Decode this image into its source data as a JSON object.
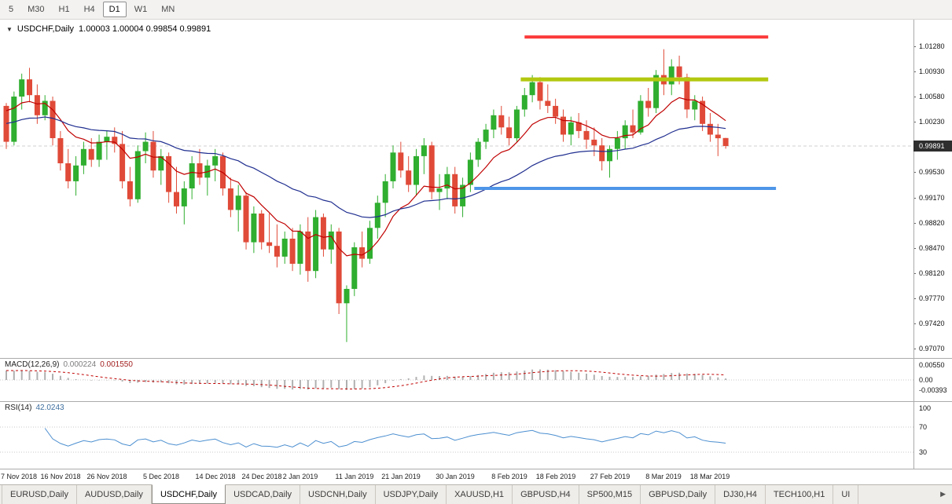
{
  "toolbar": {
    "timeframes": [
      {
        "label": "5",
        "active": false
      },
      {
        "label": "M30",
        "active": false
      },
      {
        "label": "H1",
        "active": false
      },
      {
        "label": "H4",
        "active": false
      },
      {
        "label": "D1",
        "active": true
      },
      {
        "label": "W1",
        "active": false
      },
      {
        "label": "MN",
        "active": false
      }
    ]
  },
  "chart": {
    "symbol_title": "USDCHF,Daily",
    "ohlc_text": "1.00003 1.00004 0.99854 0.99891",
    "current_price": "0.99891",
    "collapse_icon": "▼"
  },
  "macd_panel": {
    "label": "MACD(12,26,9)",
    "main_value": "0.000224",
    "signal_value": "0.001550",
    "axis_labels": [
      "0.00550",
      "0.00",
      "-0.00393"
    ]
  },
  "rsi_panel": {
    "label": "RSI(14)",
    "value": "42.0243",
    "axis_labels": [
      "100",
      "70",
      "30"
    ]
  },
  "tabs": {
    "items": [
      "EURUSD,Daily",
      "AUDUSD,Daily",
      "USDCHF,Daily",
      "USDCAD,Daily",
      "USDCNH,Daily",
      "USDJPY,Daily",
      "XAUUSD,H1",
      "GBPUSD,H4",
      "SP500,M15",
      "GBPUSD,Daily",
      "DJ30,H4",
      "TECH100,H1",
      "UI"
    ],
    "active_index": 2,
    "scroll_right_icon": "▶"
  },
  "chart_data": {
    "type": "candlestick",
    "title": "USDCHF,Daily",
    "price_min": 0.96938,
    "price_max": 1.01652,
    "price_axis_labels": [
      "1.01280",
      "1.00930",
      "1.00580",
      "1.00230",
      "0.99530",
      "0.99170",
      "0.98820",
      "0.98470",
      "0.98120",
      "0.97770",
      "0.97420",
      "0.97070"
    ],
    "date_labels": [
      {
        "text": "7 Nov 2018",
        "index": 0
      },
      {
        "text": "16 Nov 2018",
        "index": 7
      },
      {
        "text": "26 Nov 2018",
        "index": 13
      },
      {
        "text": "5 Dec 2018",
        "index": 20
      },
      {
        "text": "14 Dec 2018",
        "index": 27
      },
      {
        "text": "24 Dec 2018",
        "index": 33
      },
      {
        "text": "2 Jan 2019",
        "index": 38
      },
      {
        "text": "11 Jan 2019",
        "index": 45
      },
      {
        "text": "21 Jan 2019",
        "index": 51
      },
      {
        "text": "30 Jan 2019",
        "index": 58
      },
      {
        "text": "8 Feb 2019",
        "index": 65
      },
      {
        "text": "18 Feb 2019",
        "index": 71
      },
      {
        "text": "27 Feb 2019",
        "index": 78
      },
      {
        "text": "8 Mar 2019",
        "index": 85
      },
      {
        "text": "18 Mar 2019",
        "index": 91
      }
    ],
    "colors": {
      "up": "#2fae2f",
      "down": "#e04a38",
      "ma_fast": "#c00000",
      "ma_slow": "#1f2e8f",
      "macd_hist": "#b0b0b0",
      "macd_signal": "#c00000",
      "rsi_line": "#4c8fd0",
      "hline_red": "#fb3a3a",
      "hline_yellow": "#b2c80f",
      "hline_blue": "#4d96e8",
      "current_price_line": "#cfcfcf"
    },
    "candles": [
      [
        1.0045,
        1.0049,
        0.9985,
        0.9995
      ],
      [
        0.9995,
        1.0065,
        0.999,
        1.0058
      ],
      [
        1.0058,
        1.009,
        1.004,
        1.0082
      ],
      [
        1.0082,
        1.0098,
        1.005,
        1.006
      ],
      [
        1.006,
        1.0075,
        1.002,
        1.0032
      ],
      [
        1.0032,
        1.006,
        1.0025,
        1.0052
      ],
      [
        1.0052,
        1.0058,
        0.999,
        1.0
      ],
      [
        1.0,
        1.001,
        0.9955,
        0.9965
      ],
      [
        0.9965,
        0.9985,
        0.993,
        0.994
      ],
      [
        0.994,
        0.9975,
        0.992,
        0.9962
      ],
      [
        0.9962,
        0.9995,
        0.995,
        0.9985
      ],
      [
        0.9985,
        1.0,
        0.996,
        0.997
      ],
      [
        0.997,
        1.0005,
        0.996,
        0.9995
      ],
      [
        0.9995,
        1.001,
        0.997,
        1.0002
      ],
      [
        1.0002,
        1.0015,
        0.998,
        0.9992
      ],
      [
        0.9992,
        1.001,
        0.993,
        0.994
      ],
      [
        0.994,
        0.996,
        0.9905,
        0.9915
      ],
      [
        0.9915,
        0.999,
        0.991,
        0.9982
      ],
      [
        0.9982,
        1.0008,
        0.9965,
        0.9995
      ],
      [
        0.9995,
        1.001,
        0.9945,
        0.9955
      ],
      [
        0.9955,
        0.9985,
        0.9935,
        0.9975
      ],
      [
        0.9975,
        0.998,
        0.991,
        0.9925
      ],
      [
        0.9925,
        0.996,
        0.9895,
        0.9905
      ],
      [
        0.9905,
        0.994,
        0.988,
        0.993
      ],
      [
        0.993,
        0.9975,
        0.9915,
        0.9965
      ],
      [
        0.9965,
        0.9985,
        0.9935,
        0.9945
      ],
      [
        0.9945,
        0.997,
        0.992,
        0.9962
      ],
      [
        0.9962,
        0.9985,
        0.994,
        0.9975
      ],
      [
        0.9975,
        0.998,
        0.992,
        0.993
      ],
      [
        0.993,
        0.9945,
        0.989,
        0.99
      ],
      [
        0.99,
        0.9935,
        0.987,
        0.992
      ],
      [
        0.992,
        0.9925,
        0.9845,
        0.9855
      ],
      [
        0.9855,
        0.9905,
        0.984,
        0.9895
      ],
      [
        0.9895,
        0.99,
        0.9845,
        0.9855
      ],
      [
        0.9855,
        0.9895,
        0.984,
        0.985
      ],
      [
        0.985,
        0.988,
        0.982,
        0.9835
      ],
      [
        0.9835,
        0.987,
        0.9825,
        0.986
      ],
      [
        0.986,
        0.9875,
        0.9815,
        0.9825
      ],
      [
        0.9825,
        0.988,
        0.981,
        0.987
      ],
      [
        0.987,
        0.989,
        0.98,
        0.9815
      ],
      [
        0.9815,
        0.99,
        0.9805,
        0.989
      ],
      [
        0.989,
        0.9895,
        0.9835,
        0.9845
      ],
      [
        0.9845,
        0.988,
        0.9825,
        0.987
      ],
      [
        0.987,
        0.9875,
        0.9755,
        0.977
      ],
      [
        0.977,
        0.9795,
        0.9716,
        0.979
      ],
      [
        0.979,
        0.9855,
        0.978,
        0.9848
      ],
      [
        0.9848,
        0.987,
        0.982,
        0.9832
      ],
      [
        0.9832,
        0.9885,
        0.9825,
        0.9875
      ],
      [
        0.9875,
        0.992,
        0.986,
        0.991
      ],
      [
        0.991,
        0.995,
        0.989,
        0.994
      ],
      [
        0.994,
        0.999,
        0.993,
        0.998
      ],
      [
        0.998,
        0.9995,
        0.9945,
        0.9955
      ],
      [
        0.9955,
        0.9975,
        0.9925,
        0.9935
      ],
      [
        0.9935,
        0.9985,
        0.992,
        0.9975
      ],
      [
        0.9975,
        1.0,
        0.995,
        0.999
      ],
      [
        0.999,
        0.9995,
        0.9915,
        0.9925
      ],
      [
        0.9925,
        0.995,
        0.99,
        0.993
      ],
      [
        0.993,
        0.996,
        0.9915,
        0.995
      ],
      [
        0.995,
        0.996,
        0.9895,
        0.9905
      ],
      [
        0.9905,
        0.9945,
        0.989,
        0.9935
      ],
      [
        0.9935,
        0.998,
        0.9925,
        0.997
      ],
      [
        0.997,
        1.0,
        0.996,
        0.9995
      ],
      [
        0.9995,
        1.002,
        0.9985,
        1.0012
      ],
      [
        1.0012,
        1.004,
        1.0,
        1.0032
      ],
      [
        1.0032,
        1.0045,
        1.0005,
        1.0015
      ],
      [
        1.0015,
        1.003,
        0.999,
        1.0
      ],
      [
        1.0,
        1.0045,
        0.9995,
        1.004
      ],
      [
        1.004,
        1.007,
        1.003,
        1.006
      ],
      [
        1.006,
        1.0088,
        1.005,
        1.0078
      ],
      [
        1.0078,
        1.0085,
        1.004,
        1.0052
      ],
      [
        1.0052,
        1.0075,
        1.0035,
        1.0045
      ],
      [
        1.0045,
        1.0055,
        1.002,
        1.003
      ],
      [
        1.003,
        1.004,
        0.9995,
        1.0005
      ],
      [
        1.0005,
        1.003,
        0.999,
        1.0022
      ],
      [
        1.0022,
        1.0035,
        1.0,
        1.001
      ],
      [
        1.001,
        1.0025,
        0.9985,
        0.9998
      ],
      [
        0.9998,
        1.0015,
        0.9975,
        0.999
      ],
      [
        0.999,
        1.0,
        0.9955,
        0.9968
      ],
      [
        0.9968,
        0.999,
        0.9945,
        0.9985
      ],
      [
        0.9985,
        1.001,
        0.997,
        1.0
      ],
      [
        1.0,
        1.0025,
        0.9985,
        1.0018
      ],
      [
        1.0018,
        1.004,
        1.0,
        1.0008
      ],
      [
        1.0008,
        1.006,
        1.0005,
        1.0052
      ],
      [
        1.0052,
        1.007,
        1.003,
        1.0042
      ],
      [
        1.0042,
        1.0095,
        1.0035,
        1.0088
      ],
      [
        1.0088,
        1.0124,
        1.006,
        1.0075
      ],
      [
        1.0075,
        1.011,
        1.006,
        1.01
      ],
      [
        1.01,
        1.0115,
        1.0075,
        1.0085
      ],
      [
        1.0085,
        1.009,
        1.0028,
        1.004
      ],
      [
        1.004,
        1.006,
        1.0025,
        1.0052
      ],
      [
        1.0052,
        1.0058,
        1.001,
        1.002
      ],
      [
        1.002,
        1.0035,
        0.9995,
        1.0005
      ],
      [
        1.0005,
        1.002,
        0.9975,
        1.0
      ],
      [
        1.00003,
        1.00004,
        0.99854,
        0.99891
      ]
    ],
    "moving_averages": [
      {
        "name": "fast-ma",
        "period": 10,
        "seed": 1.0048,
        "color_key": "ma_fast"
      },
      {
        "name": "slow-ma",
        "period": 34,
        "seed": 1.0022,
        "color_key": "ma_slow"
      }
    ],
    "hlines": [
      {
        "name": "resistance-red",
        "price": 1.0141,
        "from_index": 67,
        "to_index": 98.5,
        "color_key": "hline_red",
        "width": 4
      },
      {
        "name": "resistance-yellow",
        "price": 1.0082,
        "from_index": 66.5,
        "to_index": 98.5,
        "color_key": "hline_yellow",
        "width": 5
      },
      {
        "name": "support-blue",
        "price": 0.993,
        "from_index": 60.5,
        "to_index": 99.5,
        "color_key": "hline_blue",
        "width": 4
      }
    ],
    "macd": {
      "fast": 12,
      "slow": 26,
      "signal": 9,
      "fast_seed": 1.004,
      "slow_seed": 0.9998
    },
    "rsi": {
      "period": 14,
      "levels": [
        70,
        30
      ]
    }
  }
}
